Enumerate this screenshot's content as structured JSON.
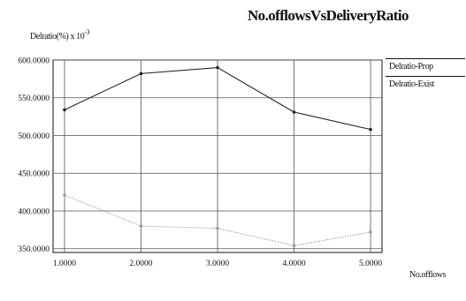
{
  "chart_data": {
    "type": "line",
    "title": "No.offlowsVsDeliveryRatio",
    "ylabel": "Delratio(%) x 10",
    "ylabel_exponent": "-3",
    "xlabel": "No.offlows",
    "x": [
      1,
      2,
      3,
      4,
      5
    ],
    "x_tick_labels": [
      "1.0000",
      "2.0000",
      "3.0000",
      "4.0000",
      "5.0000"
    ],
    "xlim": [
      0.85,
      5.15
    ],
    "ylim": [
      345,
      600
    ],
    "y_ticks": [
      350,
      400,
      450,
      500,
      550,
      600
    ],
    "y_tick_labels": [
      "350.0000",
      "400.0000",
      "450.0000",
      "500.0000",
      "550.0000",
      "600.0000"
    ],
    "grid": true,
    "legend_position": "top-right",
    "series": [
      {
        "name": "Delratio-Prop",
        "values": [
          534,
          582,
          590,
          531,
          508
        ],
        "color": "#222222",
        "style": "solid"
      },
      {
        "name": "Delratio-Exist",
        "values": [
          421,
          380,
          377,
          354,
          372
        ],
        "color": "#9a9a9a",
        "style": "dotted"
      }
    ]
  }
}
